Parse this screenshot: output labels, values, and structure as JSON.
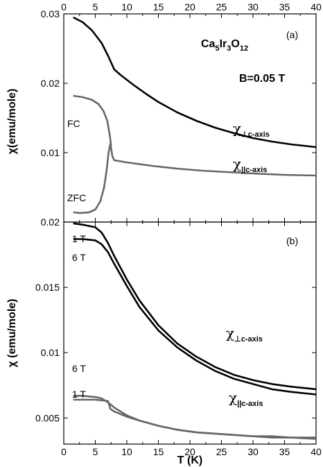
{
  "chart_data": [
    {
      "type": "line",
      "panel_label": "(a)",
      "formula_parts": [
        "Ca",
        "5",
        "Ir",
        "3",
        "O",
        "12"
      ],
      "field_label": "B=0.05 T",
      "ylabel": "χ(emu/mole)",
      "xlim": [
        0,
        40
      ],
      "ylim": [
        0,
        0.03
      ],
      "x_ticks": [
        "0",
        "5",
        "10",
        "15",
        "20",
        "25",
        "30",
        "35",
        "40"
      ],
      "y_ticks": [
        {
          "value": 0.01,
          "label": "0.01"
        },
        {
          "value": 0.02,
          "label": "0.02"
        },
        {
          "value": 0.03,
          "label": "0.03"
        }
      ],
      "series": [
        {
          "label_main": "χ",
          "label_sub": "⊥c-axis",
          "color": "#000000",
          "points": [
            [
              1.5,
              0.0295
            ],
            [
              3,
              0.0288
            ],
            [
              4.5,
              0.0276
            ],
            [
              6,
              0.0258
            ],
            [
              7,
              0.024
            ],
            [
              8,
              0.022
            ],
            [
              9,
              0.0212
            ],
            [
              11,
              0.0198
            ],
            [
              13,
              0.0185
            ],
            [
              15,
              0.0173
            ],
            [
              18,
              0.0158
            ],
            [
              21,
              0.0146
            ],
            [
              24,
              0.0136
            ],
            [
              27,
              0.0128
            ],
            [
              30,
              0.0121
            ],
            [
              33,
              0.0116
            ],
            [
              36,
              0.0112
            ],
            [
              40,
              0.0108
            ]
          ]
        },
        {
          "label": "FC",
          "color": "#666666",
          "points": [
            [
              1.5,
              0.0182
            ],
            [
              3,
              0.018
            ],
            [
              4.5,
              0.0176
            ],
            [
              5.5,
              0.017
            ],
            [
              6.3,
              0.016
            ],
            [
              6.9,
              0.0146
            ],
            [
              7.3,
              0.0125
            ],
            [
              7.5,
              0.011
            ]
          ]
        },
        {
          "label": "ZFC",
          "color": "#666666",
          "points": [
            [
              1.5,
              0.0014
            ],
            [
              2.5,
              0.0013
            ],
            [
              4,
              0.0014
            ],
            [
              5,
              0.0018
            ],
            [
              5.8,
              0.003
            ],
            [
              6.4,
              0.005
            ],
            [
              6.8,
              0.0075
            ],
            [
              7.1,
              0.01
            ],
            [
              7.4,
              0.0113
            ],
            [
              7.7,
              0.0095
            ],
            [
              8,
              0.0089
            ],
            [
              10,
              0.0086
            ],
            [
              14,
              0.0081
            ],
            [
              18,
              0.0077
            ],
            [
              22,
              0.0074
            ],
            [
              26,
              0.0072
            ],
            [
              30,
              0.007
            ],
            [
              35,
              0.0068
            ],
            [
              40,
              0.0067
            ]
          ]
        }
      ],
      "label_parallel": {
        "main": "χ",
        "sub": "||c-axis"
      }
    },
    {
      "type": "line",
      "panel_label": "(b)",
      "ylabel": "χ (emu/mole)",
      "xlabel": "T (K)",
      "xlim": [
        0,
        40
      ],
      "ylim": [
        0.003,
        0.02
      ],
      "x_ticks": [
        "0",
        "5",
        "10",
        "15",
        "20",
        "25",
        "30",
        "35",
        "40"
      ],
      "y_ticks": [
        {
          "value": 0.005,
          "label": "0.005"
        },
        {
          "value": 0.01,
          "label": "0.01"
        },
        {
          "value": 0.015,
          "label": "0.015"
        },
        {
          "value": 0.02,
          "label": "0.02"
        }
      ],
      "series": [
        {
          "label": "1 T",
          "color": "#000000",
          "points": [
            [
              1.5,
              0.0199
            ],
            [
              3,
              0.0198
            ],
            [
              5,
              0.0196
            ],
            [
              6,
              0.0192
            ],
            [
              7,
              0.0184
            ],
            [
              8,
              0.0174
            ],
            [
              10,
              0.0156
            ],
            [
              12,
              0.014
            ],
            [
              15,
              0.0121
            ],
            [
              18,
              0.0107
            ],
            [
              21,
              0.0097
            ],
            [
              24,
              0.0089
            ],
            [
              27,
              0.0083
            ],
            [
              30,
              0.0079
            ],
            [
              33,
              0.0076
            ],
            [
              36,
              0.0074
            ],
            [
              40,
              0.0072
            ]
          ]
        },
        {
          "label": "6 T",
          "color": "#000000",
          "points": [
            [
              1.5,
              0.0187
            ],
            [
              3,
              0.0187
            ],
            [
              5,
              0.0186
            ],
            [
              6,
              0.0183
            ],
            [
              7,
              0.0177
            ],
            [
              8,
              0.0168
            ],
            [
              10,
              0.0151
            ],
            [
              12,
              0.0135
            ],
            [
              15,
              0.0117
            ],
            [
              18,
              0.0104
            ],
            [
              21,
              0.0094
            ],
            [
              24,
              0.0086
            ],
            [
              27,
              0.008
            ],
            [
              30,
              0.0076
            ],
            [
              33,
              0.0072
            ],
            [
              36,
              0.007
            ],
            [
              40,
              0.0068
            ]
          ]
        },
        {
          "label": "6 T",
          "color": "#666666",
          "points": [
            [
              1.5,
              0.0067
            ],
            [
              3,
              0.0067
            ],
            [
              5,
              0.0066
            ],
            [
              6,
              0.0065
            ],
            [
              7,
              0.0062
            ],
            [
              8,
              0.0058
            ],
            [
              10,
              0.0052
            ],
            [
              12,
              0.0048
            ],
            [
              15,
              0.0044
            ],
            [
              18,
              0.0041
            ],
            [
              21,
              0.0039
            ],
            [
              24,
              0.0038
            ],
            [
              27,
              0.0037
            ],
            [
              30,
              0.0036
            ],
            [
              33,
              0.0036
            ],
            [
              36,
              0.0035
            ],
            [
              40,
              0.0035
            ]
          ]
        },
        {
          "label": "1 T",
          "color": "#666666",
          "points": [
            [
              1.5,
              0.0064
            ],
            [
              3,
              0.0064
            ],
            [
              5,
              0.0064
            ],
            [
              7,
              0.0063
            ],
            [
              7.4,
              0.0057
            ],
            [
              8,
              0.0055
            ],
            [
              10,
              0.0051
            ],
            [
              12,
              0.0048
            ],
            [
              15,
              0.0044
            ],
            [
              18,
              0.0041
            ],
            [
              21,
              0.0039
            ],
            [
              24,
              0.0038
            ],
            [
              27,
              0.0037
            ],
            [
              30,
              0.0036
            ],
            [
              33,
              0.0035
            ],
            [
              36,
              0.0035
            ],
            [
              40,
              0.0034
            ]
          ]
        }
      ],
      "label_perp": {
        "main": "χ",
        "sub": "⊥c-axis"
      },
      "label_parallel": {
        "main": "χ",
        "sub": "||c-axis"
      }
    }
  ]
}
